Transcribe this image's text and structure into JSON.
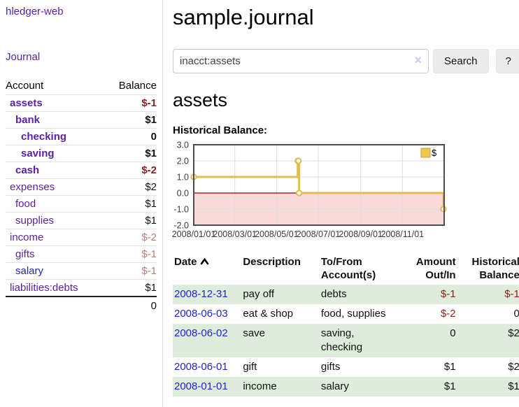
{
  "app": {
    "brand": "hledger-web",
    "nav_journal": "Journal"
  },
  "sidebar": {
    "col_account": "Account",
    "col_balance": "Balance",
    "accounts": [
      {
        "name": "assets",
        "indent": 1,
        "bold": true,
        "balance": "$-1",
        "neg": "strong"
      },
      {
        "name": "bank",
        "indent": 2,
        "bold": true,
        "balance": "$1",
        "neg": "none"
      },
      {
        "name": "checking",
        "indent": 3,
        "bold": true,
        "balance": "0",
        "neg": "none"
      },
      {
        "name": "saving",
        "indent": 3,
        "bold": true,
        "balance": "$1",
        "neg": "none"
      },
      {
        "name": "cash",
        "indent": 2,
        "bold": true,
        "balance": "$-2",
        "neg": "strong"
      },
      {
        "name": "expenses",
        "indent": 1,
        "bold": false,
        "balance": "$2",
        "neg": "none"
      },
      {
        "name": "food",
        "indent": 2,
        "bold": false,
        "balance": "$1",
        "neg": "none"
      },
      {
        "name": "supplies",
        "indent": 2,
        "bold": false,
        "balance": "$1",
        "neg": "none"
      },
      {
        "name": "income",
        "indent": 1,
        "bold": false,
        "balance": "$-2",
        "neg": "soft"
      },
      {
        "name": "gifts",
        "indent": 2,
        "bold": false,
        "balance": "$-1",
        "neg": "soft"
      },
      {
        "name": "salary",
        "indent": 2,
        "bold": false,
        "balance": "$-1",
        "neg": "soft",
        "link": "blue"
      },
      {
        "name": "liabilities:debts",
        "indent": 1,
        "bold": false,
        "balance": "$1",
        "neg": "none"
      }
    ],
    "total": "0"
  },
  "header": {
    "title": "sample.journal"
  },
  "search": {
    "value": "inacct:assets",
    "clear_icon": "×",
    "button": "Search",
    "help": "?"
  },
  "account_page": {
    "heading": "assets",
    "chart_label": "Historical Balance:"
  },
  "chart_data": {
    "type": "line",
    "style": "step",
    "title": "Historical Balance",
    "series": [
      {
        "name": "$",
        "points": [
          [
            "2008-01-01",
            1.0
          ],
          [
            "2008-06-01",
            2.0
          ],
          [
            "2008-06-02",
            2.0
          ],
          [
            "2008-06-03",
            0.0
          ],
          [
            "2008-12-31",
            -1.0
          ]
        ]
      }
    ],
    "xlim": [
      "2008-01-01",
      "2009-01-01"
    ],
    "ylim": [
      -2.0,
      3.0
    ],
    "x_ticks": [
      "2008/01/01",
      "2008/03/01",
      "2008/05/01",
      "2008/07/01",
      "2008/09/01",
      "2008/11/01"
    ],
    "y_ticks": [
      -2.0,
      -1.0,
      0.0,
      1.0,
      2.0,
      3.0
    ],
    "legend": {
      "label": "$",
      "position": "top-right"
    },
    "grid": true,
    "colors": {
      "line": "#e3bd4e",
      "marker_fill": "#ffffff",
      "negative_region": "#f9dada",
      "zero_line": "#990000",
      "grid": "#dddddd",
      "border": "#4d4d4d",
      "legend_fill": "#ecc94b",
      "legend_border": "#c0a23c"
    }
  },
  "register": {
    "columns": {
      "date": "Date",
      "description": "Description",
      "accounts": "To/From Account(s)",
      "amount": "Amount Out/In",
      "balance": "Historical Balance"
    },
    "rows": [
      {
        "date": "2008-12-31",
        "description": "pay off",
        "accounts": "debts",
        "amount": "$-1",
        "amount_neg": true,
        "balance": "$-1",
        "balance_neg": true,
        "shaded": true
      },
      {
        "date": "2008-06-03",
        "description": "eat & shop",
        "accounts": "food, supplies",
        "amount": "$-2",
        "amount_neg": true,
        "balance": "0",
        "balance_neg": false,
        "shaded": false
      },
      {
        "date": "2008-06-02",
        "description": "save",
        "accounts": "saving, checking",
        "amount": "0",
        "amount_neg": false,
        "balance": "$2",
        "balance_neg": false,
        "shaded": true
      },
      {
        "date": "2008-06-01",
        "description": "gift",
        "accounts": "gifts",
        "amount": "$1",
        "amount_neg": false,
        "balance": "$2",
        "balance_neg": false,
        "shaded": false
      },
      {
        "date": "2008-01-01",
        "description": "income",
        "accounts": "salary",
        "amount": "$1",
        "amount_neg": false,
        "balance": "$1",
        "balance_neg": false,
        "shaded": true
      }
    ]
  }
}
